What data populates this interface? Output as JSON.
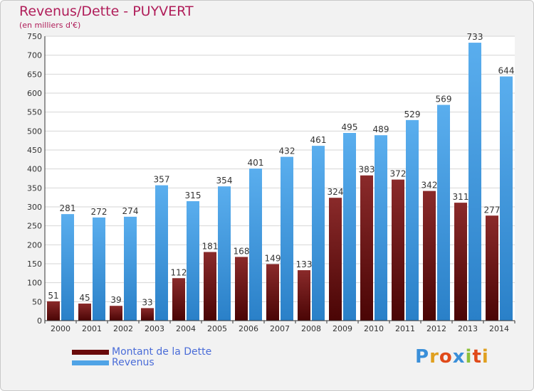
{
  "colors": {
    "debt": "#7a1414",
    "revenue": "#4fa3e6",
    "title": "#b01e5a",
    "legend_text": "#4a6cd8",
    "background": "#f2f2f2"
  },
  "chart_data": {
    "type": "bar",
    "title": "Revenus/Dette - PUYVERT",
    "subtitle": "(en milliers d'€)",
    "categories": [
      "2000",
      "2001",
      "2002",
      "2003",
      "2004",
      "2005",
      "2006",
      "2007",
      "2008",
      "2009",
      "2010",
      "2011",
      "2012",
      "2013",
      "2014"
    ],
    "series": [
      {
        "name": "Montant de la Dette",
        "values": [
          51,
          45,
          39,
          33,
          112,
          181,
          168,
          149,
          133,
          324,
          383,
          372,
          342,
          311,
          277
        ]
      },
      {
        "name": "Revenus",
        "values": [
          281,
          272,
          274,
          357,
          315,
          354,
          401,
          432,
          461,
          495,
          489,
          529,
          569,
          733,
          644
        ]
      }
    ],
    "ylim": [
      0,
      750
    ],
    "yticks": [
      0,
      50,
      100,
      150,
      200,
      250,
      300,
      350,
      400,
      450,
      500,
      550,
      600,
      650,
      700,
      750
    ],
    "grid": true,
    "legend_position": "bottom-left"
  },
  "logo": {
    "letters": [
      "P",
      "r",
      "o",
      "x",
      "i",
      "t",
      "i"
    ],
    "colors": [
      "#3a8fd9",
      "#e0a020",
      "#e04a1a",
      "#3a8fd9",
      "#8cc03a",
      "#e04a1a",
      "#e0a020"
    ]
  }
}
